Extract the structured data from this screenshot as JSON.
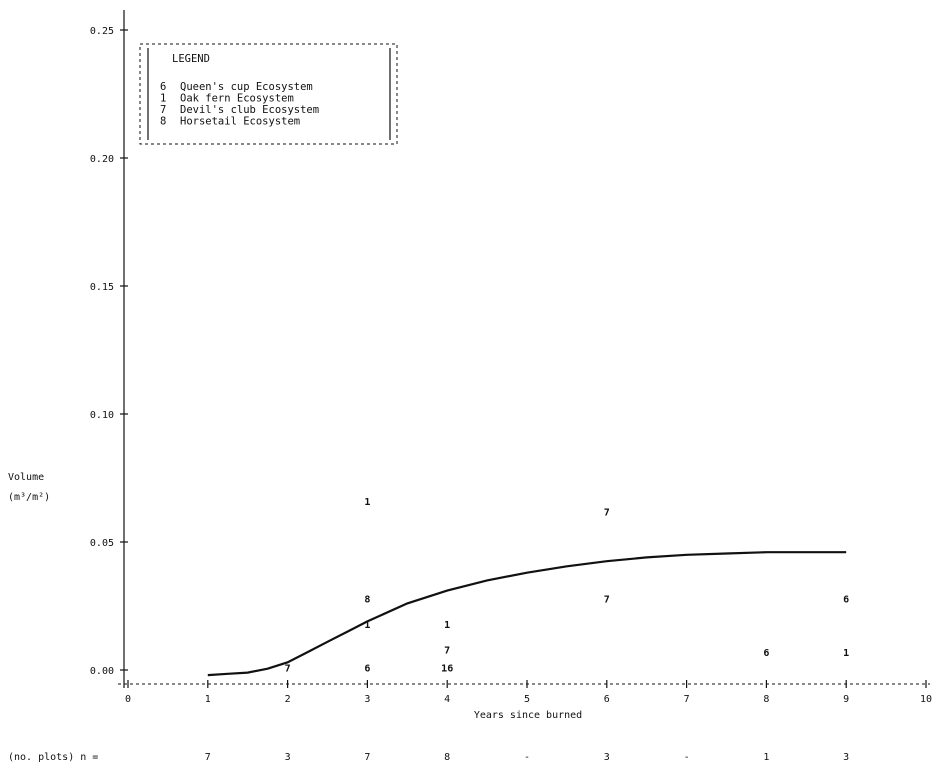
{
  "chart_data": {
    "type": "scatter",
    "ylabel_line1": "Volume",
    "ylabel_line2": "(m³/m²)",
    "xlabel": "Years since burned",
    "xlim": [
      0,
      10
    ],
    "ylim": [
      0,
      0.25
    ],
    "x_ticks": [
      "0",
      "1",
      "2",
      "3",
      "4",
      "5",
      "6",
      "7",
      "8",
      "9",
      "10"
    ],
    "y_ticks": [
      "0.00",
      "0.05",
      "0.10",
      "0.15",
      "0.20",
      "0.25"
    ],
    "legend": {
      "title": "LEGEND",
      "placement": "top-left",
      "entries": [
        {
          "symbol": "6",
          "label": "Queen's cup Ecosystem"
        },
        {
          "symbol": "1",
          "label": "Oak fern Ecosystem"
        },
        {
          "symbol": "7",
          "label": "Devil's club Ecosystem"
        },
        {
          "symbol": "8",
          "label": "Horsetail Ecosystem"
        }
      ]
    },
    "points": [
      {
        "x": 2,
        "y": 0.001,
        "label": "7"
      },
      {
        "x": 3,
        "y": 0.066,
        "label": "1"
      },
      {
        "x": 3,
        "y": 0.028,
        "label": "8"
      },
      {
        "x": 3,
        "y": 0.018,
        "label": "1"
      },
      {
        "x": 3,
        "y": 0.001,
        "label": "6"
      },
      {
        "x": 4,
        "y": 0.018,
        "label": "1"
      },
      {
        "x": 4,
        "y": 0.008,
        "label": "7"
      },
      {
        "x": 4,
        "y": 0.001,
        "label": "16"
      },
      {
        "x": 6,
        "y": 0.062,
        "label": "7"
      },
      {
        "x": 6,
        "y": 0.028,
        "label": "7"
      },
      {
        "x": 8,
        "y": 0.007,
        "label": "6"
      },
      {
        "x": 9,
        "y": 0.028,
        "label": "6"
      },
      {
        "x": 9,
        "y": 0.007,
        "label": "1"
      }
    ],
    "fitted_curve": {
      "x": [
        1,
        1.25,
        1.5,
        1.75,
        2,
        2.25,
        2.5,
        2.75,
        3,
        3.5,
        4,
        4.5,
        5,
        5.5,
        6,
        6.5,
        7,
        7.5,
        8,
        8.5,
        9
      ],
      "y": [
        -0.002,
        -0.0015,
        -0.001,
        0.0005,
        0.003,
        0.007,
        0.011,
        0.015,
        0.019,
        0.026,
        0.031,
        0.035,
        0.038,
        0.0405,
        0.0425,
        0.044,
        0.045,
        0.0455,
        0.046,
        0.046,
        0.046
      ]
    },
    "sample_size": {
      "label": "(no. plots)  n =",
      "x": [
        1,
        2,
        3,
        4,
        5,
        6,
        7,
        8,
        9
      ],
      "n": [
        "7",
        "3",
        "7",
        "8",
        "-",
        "3",
        "-",
        "1",
        "3"
      ]
    }
  }
}
